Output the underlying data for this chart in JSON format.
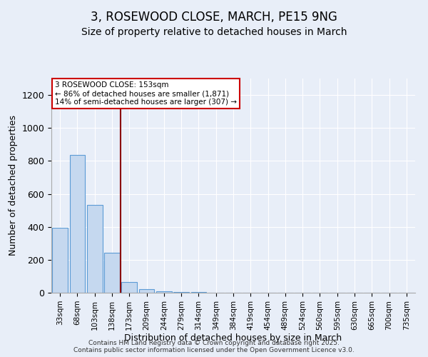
{
  "title": "3, ROSEWOOD CLOSE, MARCH, PE15 9NG",
  "subtitle": "Size of property relative to detached houses in March",
  "xlabel": "Distribution of detached houses by size in March",
  "ylabel": "Number of detached properties",
  "categories": [
    "33sqm",
    "68sqm",
    "103sqm",
    "138sqm",
    "173sqm",
    "209sqm",
    "244sqm",
    "279sqm",
    "314sqm",
    "349sqm",
    "384sqm",
    "419sqm",
    "454sqm",
    "489sqm",
    "524sqm",
    "560sqm",
    "595sqm",
    "630sqm",
    "665sqm",
    "700sqm",
    "735sqm"
  ],
  "values": [
    395,
    835,
    535,
    243,
    65,
    20,
    10,
    5,
    3,
    0,
    0,
    0,
    0,
    0,
    0,
    0,
    0,
    0,
    0,
    0,
    0
  ],
  "bar_color": "#c5d8ef",
  "bar_edge_color": "#5b9bd5",
  "vline_x": 3.5,
  "vline_color": "#8b0000",
  "annotation_text": "3 ROSEWOOD CLOSE: 153sqm\n← 86% of detached houses are smaller (1,871)\n14% of semi-detached houses are larger (307) →",
  "annotation_box_color": "white",
  "annotation_box_edge_color": "#cc0000",
  "ylim": [
    0,
    1300
  ],
  "yticks": [
    0,
    200,
    400,
    600,
    800,
    1000,
    1200
  ],
  "background_color": "#e8eef8",
  "footer": "Contains HM Land Registry data © Crown copyright and database right 2025.\nContains public sector information licensed under the Open Government Licence v3.0.",
  "title_fontsize": 12,
  "subtitle_fontsize": 10
}
